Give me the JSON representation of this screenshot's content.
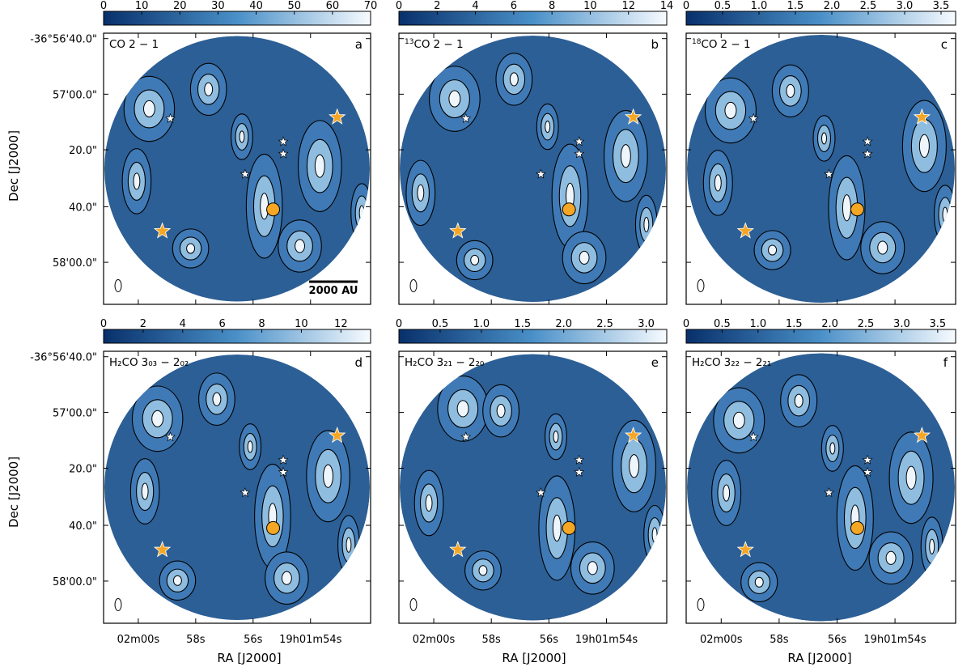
{
  "figure": {
    "y_axis_label": "Dec [J2000]",
    "x_axis_label": "RA [J2000]",
    "dec_ticks": [
      "-36°56'40.0\"",
      "57'00.0\"",
      "20.0\"",
      "40.0\"",
      "58'00.0\""
    ],
    "ra_ticks": [
      "02m00s",
      "58s",
      "56s",
      "19h01m54s"
    ],
    "scale_bar_label": "2000 AU",
    "colors": {
      "map_fill": "#2c5f95",
      "cmap_low": "#08306b",
      "cmap_mid": "#4a90c8",
      "cmap_high": "#f7fbff",
      "contour": "#000000",
      "protostar_marker": "#f5a623",
      "star_marker": "#ffffff",
      "peak_marker": "#f5a623"
    }
  },
  "panels": [
    {
      "letter": "a",
      "molecule": "CO",
      "superscript": "",
      "molecule_rest": "",
      "transition": "2 − 1",
      "colorbar": {
        "min": 0,
        "max": 70,
        "ticks": [
          "0",
          "10",
          "20",
          "30",
          "40",
          "50",
          "60",
          "70"
        ]
      }
    },
    {
      "letter": "b",
      "molecule": "CO",
      "superscript": "13",
      "molecule_rest": "",
      "transition": "2 − 1",
      "colorbar": {
        "min": 0,
        "max": 14,
        "ticks": [
          "0",
          "2",
          "4",
          "6",
          "8",
          "10",
          "12",
          "14"
        ]
      }
    },
    {
      "letter": "c",
      "molecule": "C",
      "superscript": "18",
      "molecule_rest": "O",
      "transition": "2 − 1",
      "colorbar": {
        "min": 0,
        "max": 3.7,
        "ticks": [
          "0",
          "0.5",
          "1.0",
          "1.5",
          "2.0",
          "2.5",
          "3.0",
          "3.5"
        ]
      }
    },
    {
      "letter": "d",
      "molecule": "H₂CO",
      "superscript": "",
      "molecule_rest": "",
      "transition": "3₀₃ − 2₀₂",
      "colorbar": {
        "min": 0,
        "max": 13.5,
        "ticks": [
          "0",
          "2",
          "4",
          "6",
          "8",
          "10",
          "12"
        ]
      }
    },
    {
      "letter": "e",
      "molecule": "H₂CO",
      "superscript": "",
      "molecule_rest": "",
      "transition": "3₂₁ − 2₂₀",
      "colorbar": {
        "min": 0,
        "max": 3.25,
        "ticks": [
          "0",
          "0.5",
          "1.0",
          "1.5",
          "2.0",
          "2.5",
          "3.0"
        ]
      }
    },
    {
      "letter": "f",
      "molecule": "H₂CO",
      "superscript": "",
      "molecule_rest": "",
      "transition": "3₂₂ − 2₂₁",
      "colorbar": {
        "min": 0,
        "max": 3.75,
        "ticks": [
          "0",
          "0.5",
          "1.0",
          "1.5",
          "2.0",
          "2.5",
          "3.0",
          "3.5"
        ]
      }
    }
  ]
}
